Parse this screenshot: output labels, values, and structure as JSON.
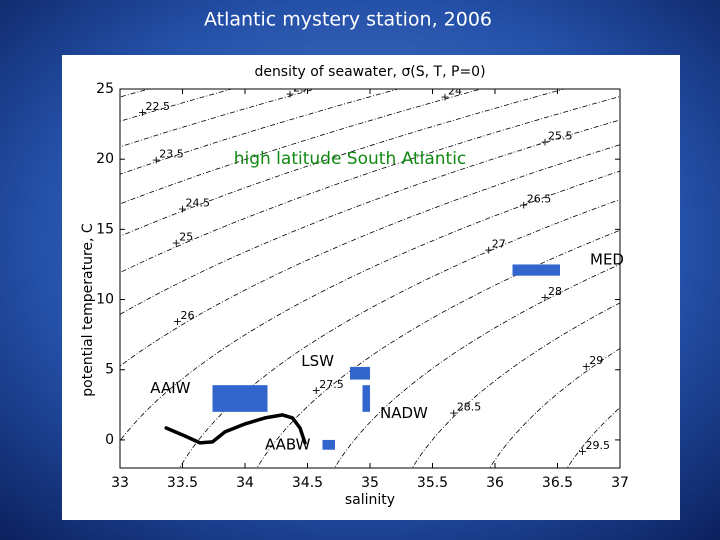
{
  "slide_title": "Atlantic mystery station, 2006",
  "chart_data": {
    "type": "line",
    "title": "density of seawater, σ(S, T, P=0)",
    "xlabel": "salinity",
    "ylabel": "potential temperature, C",
    "annotation": {
      "text": "high latitude South Atlantic",
      "color": "#118811"
    },
    "xlim": [
      33,
      37
    ],
    "ylim": [
      -2,
      25
    ],
    "xticks": [
      33,
      33.5,
      34,
      34.5,
      35,
      35.5,
      36,
      36.5,
      37
    ],
    "yticks": [
      0,
      5,
      10,
      15,
      20,
      25
    ],
    "contour_levels": [
      22,
      22.5,
      23,
      23.5,
      24,
      24.5,
      25,
      25.5,
      26,
      26.5,
      27,
      27.5,
      28,
      28.5,
      29,
      29.5,
      30,
      30.5
    ],
    "contour_labels": [
      {
        "value": 22.5,
        "x": 33.18,
        "y": 23.3
      },
      {
        "value": 23,
        "x": 34.36,
        "y": 24.6
      },
      {
        "value": 23.5,
        "x": 33.29,
        "y": 19.9
      },
      {
        "value": 24,
        "x": 35.6,
        "y": 24.4
      },
      {
        "value": 24.5,
        "x": 33.5,
        "y": 16.4
      },
      {
        "value": 25,
        "x": 33.45,
        "y": 14.0
      },
      {
        "value": 25.5,
        "x": 36.4,
        "y": 21.2
      },
      {
        "value": 26,
        "x": 33.46,
        "y": 8.4
      },
      {
        "value": 26.5,
        "x": 36.23,
        "y": 16.7
      },
      {
        "value": 27,
        "x": 35.95,
        "y": 13.5
      },
      {
        "value": 27.5,
        "x": 34.57,
        "y": 3.5
      },
      {
        "value": 28,
        "x": 36.4,
        "y": 10.1
      },
      {
        "value": 28.5,
        "x": 35.67,
        "y": 1.9
      },
      {
        "value": 29,
        "x": 36.73,
        "y": 5.2
      },
      {
        "value": 29.5,
        "x": 36.7,
        "y": -0.85
      }
    ],
    "water_masses": [
      {
        "name": "MED",
        "color": "#3366cc",
        "x": [
          36.14,
          36.52
        ],
        "y": [
          11.7,
          12.5
        ]
      },
      {
        "name": "LSW",
        "color": "#3366cc",
        "x": [
          34.84,
          35.0
        ],
        "y": [
          4.3,
          5.2
        ]
      },
      {
        "name": "NADW",
        "color": "#3366cc",
        "x": [
          34.94,
          35.0
        ],
        "y": [
          2.0,
          3.9
        ]
      },
      {
        "name": "AAIW",
        "color": "#3366cc",
        "x": [
          33.74,
          34.18
        ],
        "y": [
          2.0,
          3.9
        ]
      },
      {
        "name": "AABW",
        "color": "#3366cc",
        "x": [
          34.62,
          34.72
        ],
        "y": [
          -0.7,
          0
        ]
      }
    ],
    "profile": {
      "color": "#000000",
      "x": [
        33.37,
        33.52,
        33.64,
        33.74,
        33.84,
        34.0,
        34.16,
        34.3,
        34.38,
        34.44,
        34.48
      ],
      "y": [
        0.85,
        0.28,
        -0.21,
        -0.14,
        0.57,
        1.14,
        1.57,
        1.78,
        1.57,
        0.85,
        -0.21
      ]
    }
  }
}
